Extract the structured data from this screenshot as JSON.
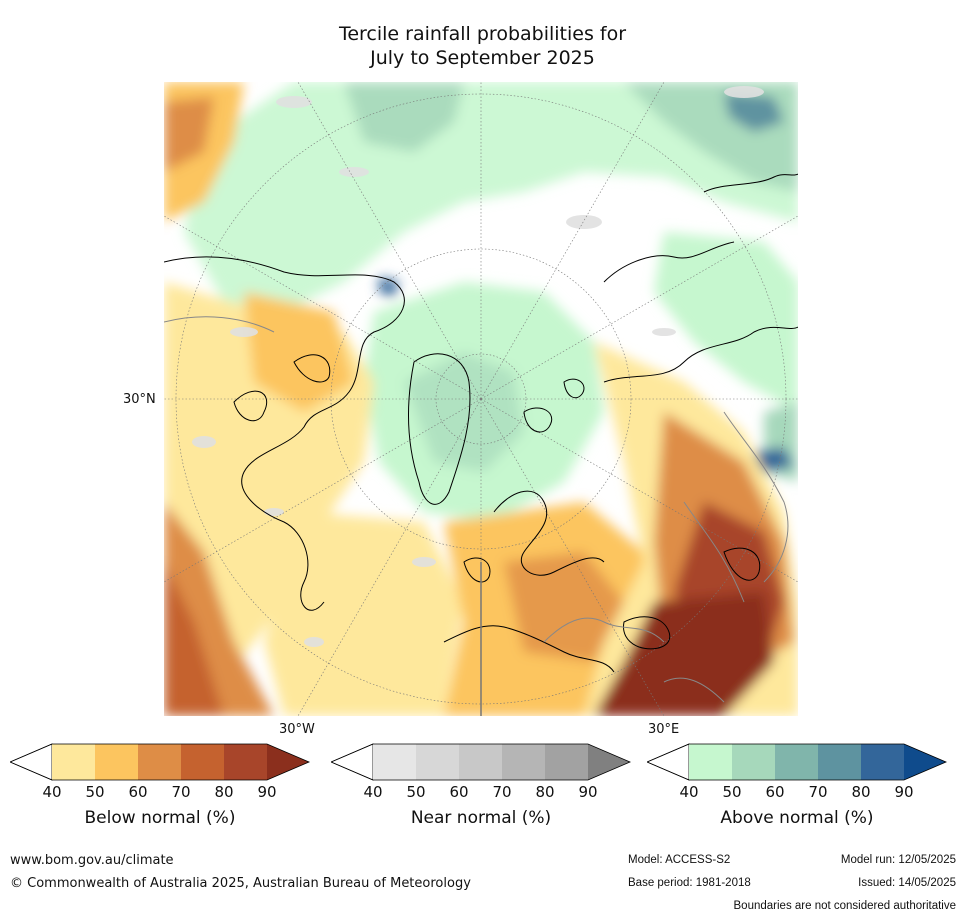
{
  "title": {
    "line1": "Tercile rainfall probabilities for",
    "line2": "July to September 2025"
  },
  "map_labels": {
    "lat_30n": "30°N",
    "lon_30w": "30°W",
    "lon_30e": "30°E"
  },
  "colorbars": [
    {
      "label": "Below normal (%)",
      "ticks": [
        "40",
        "50",
        "60",
        "70",
        "80",
        "90"
      ],
      "colors": [
        "#ffffff",
        "#fee89c",
        "#fcc55f",
        "#de8d46",
        "#c5622f",
        "#a8452a",
        "#8b2f1d"
      ]
    },
    {
      "label": "Near normal (%)",
      "ticks": [
        "40",
        "50",
        "60",
        "70",
        "80",
        "90"
      ],
      "colors": [
        "#ffffff",
        "#e6e6e6",
        "#d7d7d7",
        "#c8c8c8",
        "#b5b5b5",
        "#a2a2a2",
        "#808080"
      ]
    },
    {
      "label": "Above normal (%)",
      "ticks": [
        "40",
        "50",
        "60",
        "70",
        "80",
        "90"
      ],
      "colors": [
        "#ffffff",
        "#c6f7cf",
        "#a6d8bb",
        "#80b5ab",
        "#5e93a0",
        "#33669a",
        "#0f4b8c"
      ]
    }
  ],
  "footer": {
    "website": "www.bom.gov.au/climate",
    "copyright": "© Commonwealth of Australia 2025, Australian Bureau of Meteorology",
    "model": "Model: ACCESS-S2",
    "base_period": "Base period: 1981-2018",
    "model_run": "Model run: 12/05/2025",
    "issued": "Issued: 14/05/2025",
    "disclaimer": "Boundaries are not considered authoritative"
  }
}
